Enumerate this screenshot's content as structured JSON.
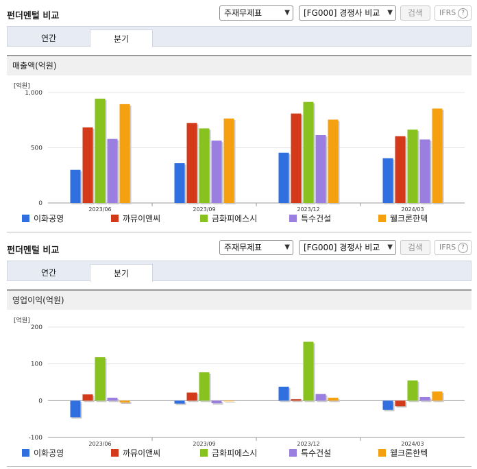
{
  "panels": [
    {
      "title": "펀더멘털 비교",
      "select1": "주재무제표",
      "select2": "[FG000] 경쟁사 비교",
      "search_label": "검색",
      "ifrs_label": "IFRS",
      "help_icon": "?",
      "tabs": [
        {
          "label": "연간"
        },
        {
          "label": "분기"
        }
      ],
      "active_tab": 1,
      "section_title": "매출액(억원)",
      "unit": "[억원]"
    },
    {
      "title": "펀더멘털 비교",
      "select1": "주재무제표",
      "select2": "[FG000] 경쟁사 비교",
      "search_label": "검색",
      "ifrs_label": "IFRS",
      "help_icon": "?",
      "tabs": [
        {
          "label": "연간"
        },
        {
          "label": "분기"
        }
      ],
      "active_tab": 1,
      "section_title": "영업이익(억원)",
      "unit": "[억원]"
    }
  ],
  "chart_data": [
    {
      "type": "bar",
      "categories": [
        "2023/06",
        "2023/09",
        "2023/12",
        "2024/03"
      ],
      "ylim": [
        0,
        1000
      ],
      "yticks": [
        0,
        500,
        1000
      ],
      "ytick_labels": [
        "0",
        "500",
        "1,000"
      ],
      "ylabel": "[억원]",
      "legend": "bottom",
      "series": [
        {
          "name": "이화공영",
          "color": "#2f6fdf",
          "values": [
            300,
            360,
            455,
            405
          ]
        },
        {
          "name": "까뮤이앤씨",
          "color": "#d33a1a",
          "values": [
            685,
            725,
            810,
            605
          ]
        },
        {
          "name": "금화피에스시",
          "color": "#88c21f",
          "values": [
            945,
            675,
            915,
            665
          ]
        },
        {
          "name": "특수건설",
          "color": "#9a7ee0",
          "values": [
            580,
            565,
            615,
            575
          ]
        },
        {
          "name": "웰크론한텍",
          "color": "#f5a00f",
          "values": [
            895,
            765,
            755,
            855
          ]
        }
      ]
    },
    {
      "type": "bar",
      "categories": [
        "2023/06",
        "2023/09",
        "2023/12",
        "2024/03"
      ],
      "ylim": [
        -100,
        200
      ],
      "yticks": [
        -100,
        0,
        100,
        200
      ],
      "ytick_labels": [
        "-100",
        "0",
        "100",
        "200"
      ],
      "ylabel": "[억원]",
      "legend": "bottom",
      "series": [
        {
          "name": "이화공영",
          "color": "#2f6fdf",
          "values": [
            -45,
            -8,
            38,
            -25
          ]
        },
        {
          "name": "까뮤이앤씨",
          "color": "#d33a1a",
          "values": [
            17,
            22,
            4,
            -15
          ]
        },
        {
          "name": "금화피에스시",
          "color": "#88c21f",
          "values": [
            118,
            77,
            160,
            55
          ]
        },
        {
          "name": "특수건설",
          "color": "#9a7ee0",
          "values": [
            8,
            -7,
            18,
            10
          ]
        },
        {
          "name": "웰크론한텍",
          "color": "#f5a00f",
          "values": [
            -5,
            0,
            8,
            25
          ]
        }
      ]
    }
  ]
}
